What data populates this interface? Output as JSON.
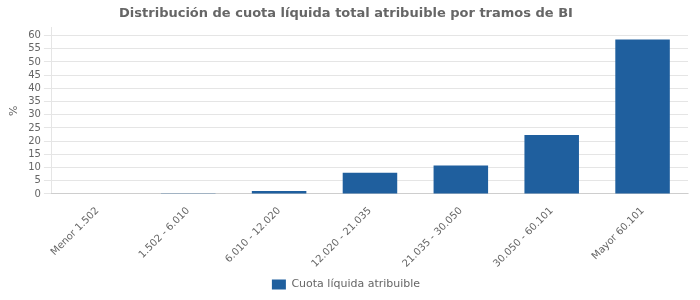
{
  "chart_data": {
    "type": "bar",
    "title": "Distribución de cuota líquida total atribuible por tramos de BI",
    "categories": [
      "Menor 1.502",
      "1.502 - 6.010",
      "6.010 - 12.020",
      "12.020 - 21.035",
      "21.035 - 30.050",
      "30.050 - 60.101",
      "Mayor 60.101"
    ],
    "series": [
      {
        "name": "Cuota líquida atribuible",
        "color": "#1f5f9e",
        "values": [
          0.2,
          0.3,
          1.1,
          8.0,
          10.8,
          22.3,
          58.5
        ]
      }
    ],
    "ylabel": "%",
    "ylim": [
      0,
      63
    ],
    "yticks": [
      0,
      5,
      10,
      15,
      20,
      25,
      30,
      35,
      40,
      45,
      50,
      55,
      60
    ],
    "grid": true,
    "legend": "bottom"
  }
}
